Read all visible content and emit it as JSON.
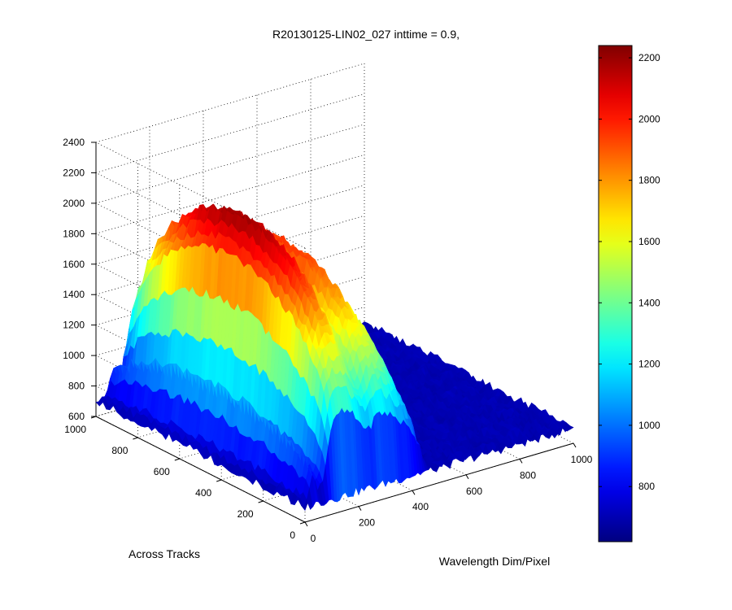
{
  "chart_data": {
    "type": "surface3d",
    "title": "R20130125-LIN02_027 inttime = 0.9,",
    "xlabel": "Wavelength Dim/Pixel",
    "ylabel": "Across Tracks",
    "zlabel": "",
    "xlim": [
      0,
      1000
    ],
    "ylim": [
      0,
      1000
    ],
    "zlim": [
      600,
      2400
    ],
    "xticks": [
      "0",
      "200",
      "400",
      "600",
      "800",
      "1000"
    ],
    "yticks": [
      "0",
      "200",
      "400",
      "600",
      "800",
      "1000"
    ],
    "zticks": [
      "600",
      "800",
      "1000",
      "1200",
      "1400",
      "1600",
      "1800",
      "2000",
      "2200",
      "2400"
    ],
    "grid": true,
    "colormap": "jet",
    "colorbar": {
      "location": "right",
      "range": [
        620,
        2240
      ],
      "ticks": [
        "800",
        "1000",
        "1200",
        "1400",
        "1600",
        "1800",
        "2000",
        "2200"
      ]
    },
    "surface": {
      "baseline": 700,
      "signal_y_range": [
        0,
        1000
      ],
      "profile_x": [
        0,
        20,
        40,
        60,
        80,
        110,
        140,
        180,
        220,
        250,
        280,
        310,
        340,
        380,
        420,
        470,
        520,
        1000
      ],
      "profile_z": [
        700,
        780,
        1150,
        960,
        1050,
        1950,
        2200,
        2150,
        1880,
        1720,
        1960,
        1950,
        1850,
        1650,
        1400,
        720,
        700,
        700
      ]
    }
  }
}
